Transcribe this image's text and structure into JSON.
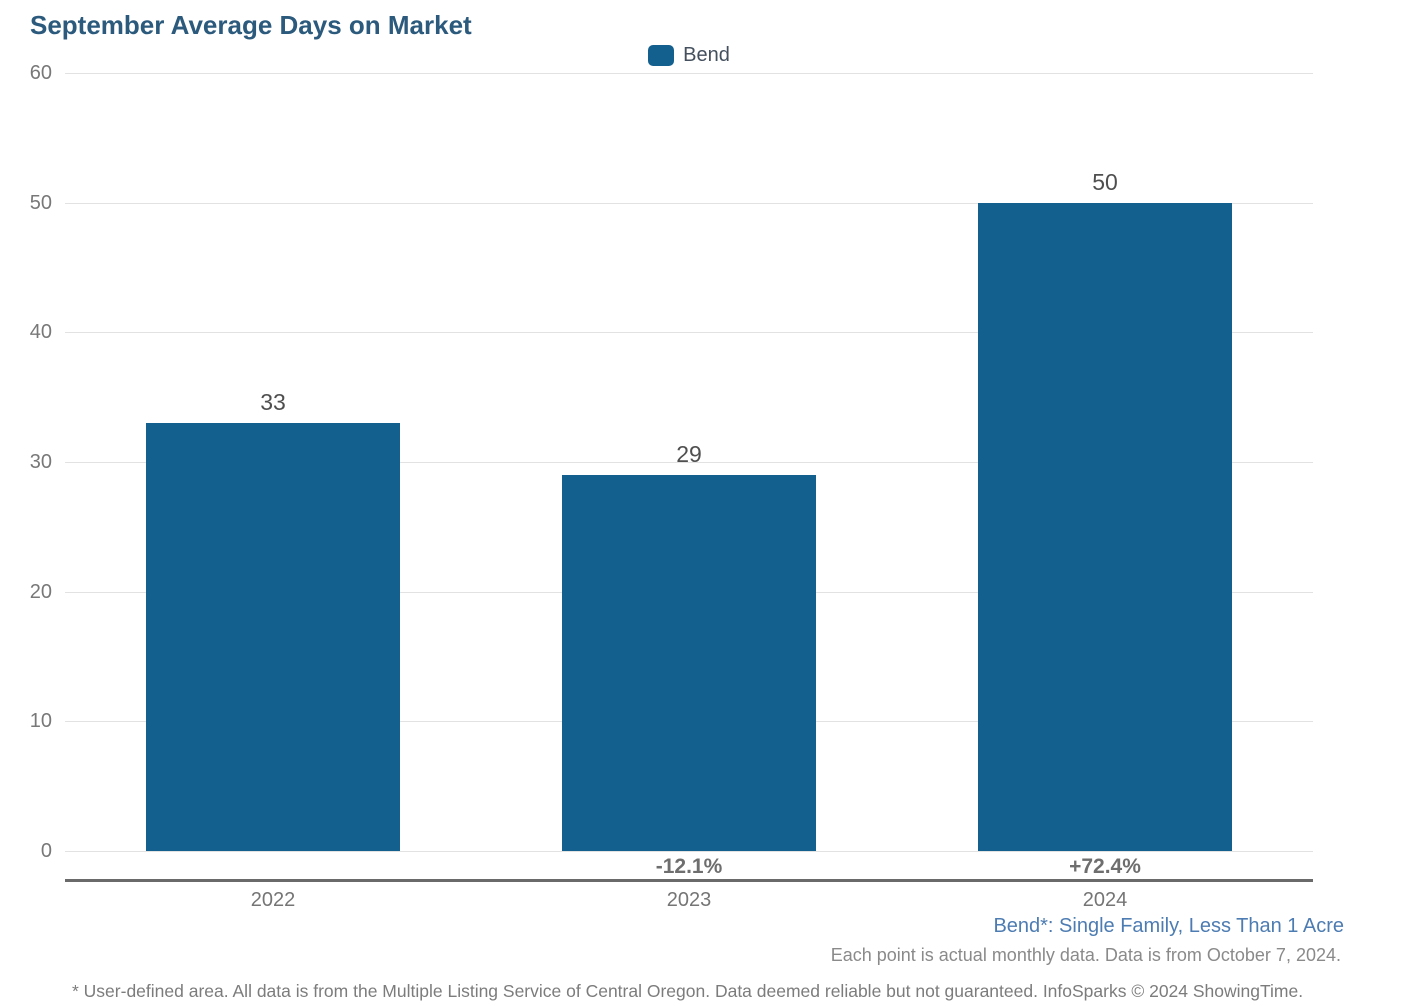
{
  "header": {
    "title": "September Average Days on Market"
  },
  "legend": {
    "label": "Bend"
  },
  "chart_data": {
    "type": "bar",
    "title": "September Average Days on Market",
    "series_name": "Bend",
    "categories": [
      "2022",
      "2023",
      "2024"
    ],
    "values": [
      33,
      29,
      50
    ],
    "change_labels": [
      "",
      "-12.1%",
      "+72.4%"
    ],
    "xlabel": "",
    "ylabel": "",
    "ylim": [
      0,
      60
    ],
    "yticks": [
      0,
      10,
      20,
      30,
      40,
      50,
      60
    ],
    "bar_color": "#135f8e",
    "grid": true,
    "legend_position": "top-center"
  },
  "footnotes": {
    "series_note": "Bend*: Single Family, Less Than 1 Acre",
    "data_note": "Each point is actual monthly data. Data is from October 7, 2024.",
    "disclaimer": "* User-defined area. All data is from the Multiple Listing Service of Central Oregon. Data deemed reliable but not guaranteed. InfoSparks © 2024 ShowingTime."
  },
  "colors": {
    "title": "#2b5a7d",
    "bar": "#135f8e",
    "series_note": "#4d7cb2"
  }
}
